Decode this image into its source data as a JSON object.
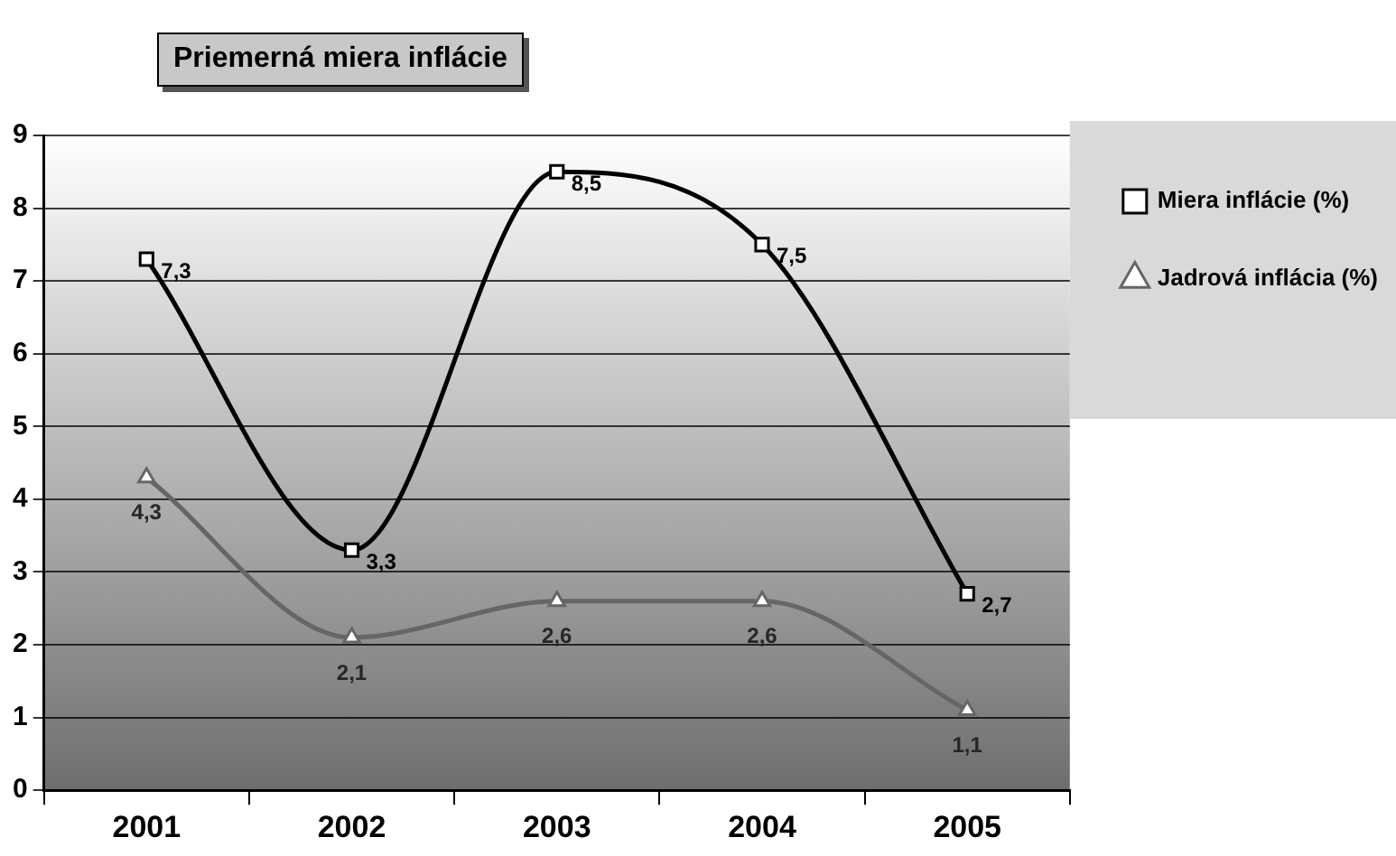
{
  "chart_data": {
    "type": "line",
    "title": "Priemerná miera inflácie",
    "categories": [
      "2001",
      "2002",
      "2003",
      "2004",
      "2005"
    ],
    "series": [
      {
        "name": "Miera inflácie (%)",
        "color": "#000000",
        "marker": "square",
        "values": [
          7.3,
          3.3,
          8.5,
          7.5,
          2.7
        ],
        "value_labels": [
          "7,3",
          "3,3",
          "8,5",
          "7,5",
          "2,7"
        ]
      },
      {
        "name": "Jadrová inflácia (%)",
        "color": "#666666",
        "marker": "triangle",
        "values": [
          4.3,
          2.1,
          2.6,
          2.6,
          1.1
        ],
        "value_labels": [
          "4,3",
          "2,1",
          "2,6",
          "2,6",
          "1,1"
        ]
      }
    ],
    "ylim": [
      0,
      9
    ],
    "yticks": [
      0,
      1,
      2,
      3,
      4,
      5,
      6,
      7,
      8,
      9
    ],
    "grid": "y",
    "legend": "right",
    "line_style": "solid"
  }
}
